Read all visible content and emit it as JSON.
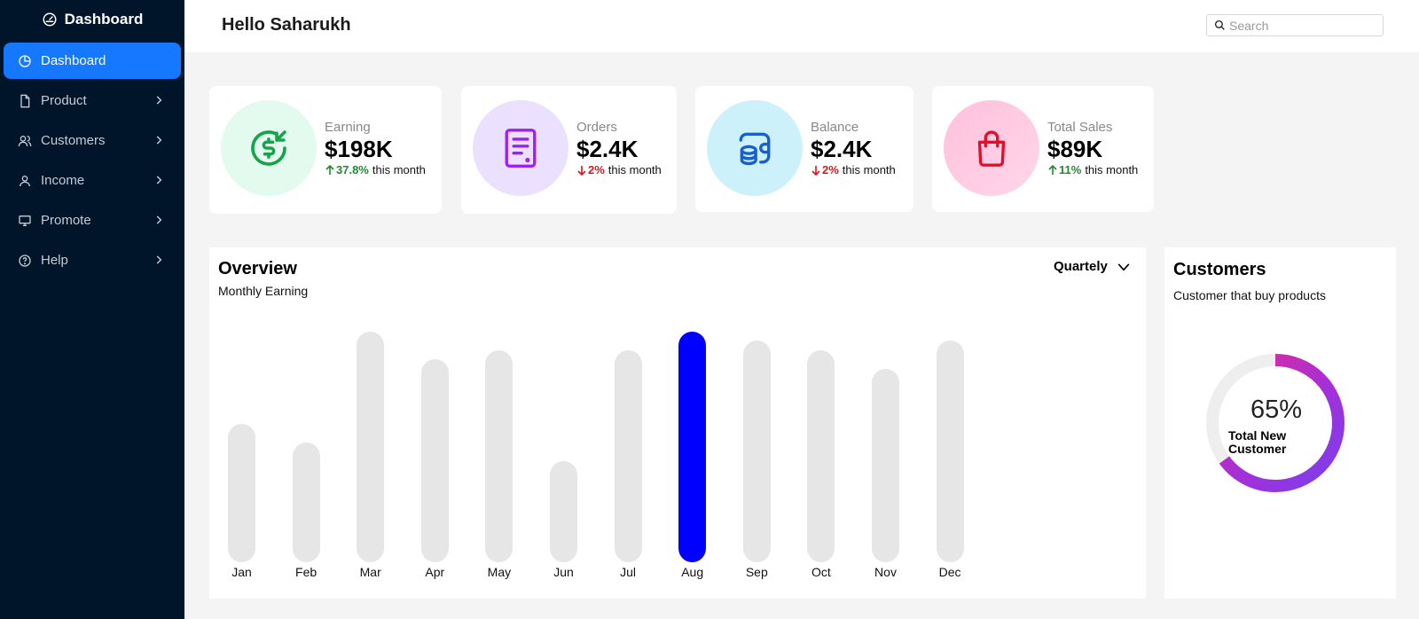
{
  "sidebar": {
    "brand": "Dashboard",
    "items": [
      {
        "label": "Dashboard",
        "icon": "pie-chart-icon",
        "active": true
      },
      {
        "label": "Product",
        "icon": "file-icon"
      },
      {
        "label": "Customers",
        "icon": "users-icon"
      },
      {
        "label": "Income",
        "icon": "user-icon"
      },
      {
        "label": "Promote",
        "icon": "monitor-icon"
      },
      {
        "label": "Help",
        "icon": "help-icon"
      }
    ]
  },
  "header": {
    "greeting": "Hello Saharukh",
    "search_placeholder": "Search"
  },
  "stats": [
    {
      "label": "Earning",
      "value": "$198K",
      "change": "37.8%",
      "direction": "up",
      "suffix": "this month",
      "icon": "dollar-icon",
      "bg": "#e3fbee",
      "color": "#16a34a"
    },
    {
      "label": "Orders",
      "value": "$2.4K",
      "change": "2%",
      "direction": "down",
      "suffix": "this month",
      "icon": "document-icon",
      "bg": "#ece0ff",
      "color": "#a020f0"
    },
    {
      "label": "Balance",
      "value": "$2.4K",
      "change": "2%",
      "direction": "down",
      "suffix": "this month",
      "icon": "wallet-icon",
      "bg": "#cdf1fb",
      "color": "#1a5fd0"
    },
    {
      "label": "Total Sales",
      "value": "$89K",
      "change": "11%",
      "direction": "up",
      "suffix": "this month",
      "icon": "shopping-bag-icon",
      "bg": "#ffc8e2",
      "color": "#e0102a"
    }
  ],
  "overview": {
    "title": "Overview",
    "subtitle": "Monthly Earning",
    "period": "Quartely"
  },
  "chart_data": {
    "type": "bar",
    "title": "Overview",
    "subtitle": "Monthly Earning",
    "categories": [
      "Jan",
      "Feb",
      "Mar",
      "Apr",
      "May",
      "Jun",
      "Jul",
      "Aug",
      "Sep",
      "Oct",
      "Nov",
      "Dec"
    ],
    "values": [
      60,
      52,
      100,
      88,
      92,
      44,
      92,
      100,
      96,
      92,
      84,
      96
    ],
    "highlight_index": 7,
    "highlight_color": "#0000ff",
    "bar_color": "#e6e6e6",
    "ylim": [
      0,
      100
    ],
    "grid": false
  },
  "customers": {
    "title": "Customers",
    "subtitle": "Customer that buy products",
    "percent_label": "65%",
    "percent": 65,
    "center_label": "Total New Customer"
  }
}
